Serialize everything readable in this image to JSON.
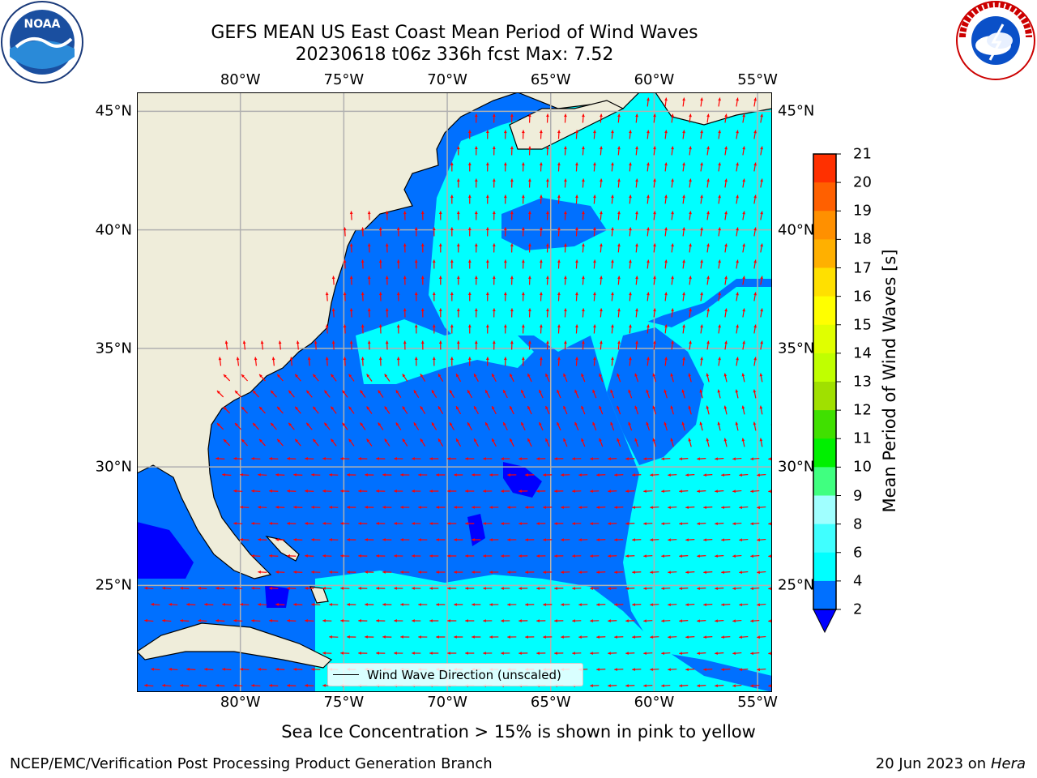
{
  "header": {
    "title_line1": "GEFS MEAN US East Coast Mean Period of Wind Waves",
    "title_line2": "20230618 t06z 336h fcst   Max: 7.52"
  },
  "logos": {
    "left": {
      "name": "NOAA",
      "text": "NOAA",
      "ring_text": "NATIONAL OCEANIC AND ATMOSPHERIC ADMINISTRATION · U.S. DEPARTMENT OF COMMERCE"
    },
    "right": {
      "name": "National Weather Service",
      "ring_text": "NATIONAL WEATHER SERVICE"
    }
  },
  "map": {
    "lon_labels": [
      "80°W",
      "75°W",
      "70°W",
      "65°W",
      "60°W",
      "55°W"
    ],
    "lat_labels": [
      "45°N",
      "40°N",
      "35°N",
      "30°N",
      "25°N"
    ],
    "lon_values": [
      -80,
      -75,
      -70,
      -65,
      -60,
      -55
    ],
    "lat_values": [
      45,
      40,
      35,
      30,
      25
    ],
    "extent": {
      "lon_min": -85,
      "lon_max": -54.3,
      "lat_min": 20.5,
      "lat_max": 45.8
    },
    "colors": {
      "land": "#efedda",
      "coast": "#000000",
      "grid": "#b0b0b0",
      "arrow": "#ff0000"
    },
    "legend_label": "Wind Wave Direction (unscaled)"
  },
  "colorbar": {
    "label": "Mean Period of Wind Waves [s]",
    "ticks": [
      "2",
      "4",
      "6",
      "8",
      "9",
      "10",
      "11",
      "12",
      "13",
      "14",
      "15",
      "16",
      "17",
      "18",
      "19",
      "20",
      "21"
    ],
    "colors": [
      "#0070ff",
      "#00ffff",
      "#40ffff",
      "#a0ffff",
      "#40ff80",
      "#00f000",
      "#40e000",
      "#a0e000",
      "#c0ff00",
      "#e0ff00",
      "#ffff00",
      "#ffe000",
      "#ffb000",
      "#ff9000",
      "#ff6000",
      "#ff3000"
    ],
    "extend_color": "#0000ff"
  },
  "chart_data": {
    "type": "heatmap",
    "variable": "Mean Period of Wind Waves",
    "unit": "s",
    "max": 7.52,
    "levels": [
      2,
      4,
      6,
      8,
      9,
      10,
      11,
      12,
      13,
      14,
      15,
      16,
      17,
      18,
      19,
      20,
      21
    ],
    "x": [
      -80,
      -75,
      -70,
      -65,
      -60,
      -55
    ],
    "y": [
      45,
      40,
      35,
      30,
      25
    ]
  },
  "footer": {
    "sea_ice_note": "Sea Ice Concentration > 15% is shown in pink to yellow",
    "credit": "NCEP/EMC/Verification Post Processing Product Generation Branch",
    "date": "20 Jun 2023 on",
    "machine": "Hera"
  }
}
